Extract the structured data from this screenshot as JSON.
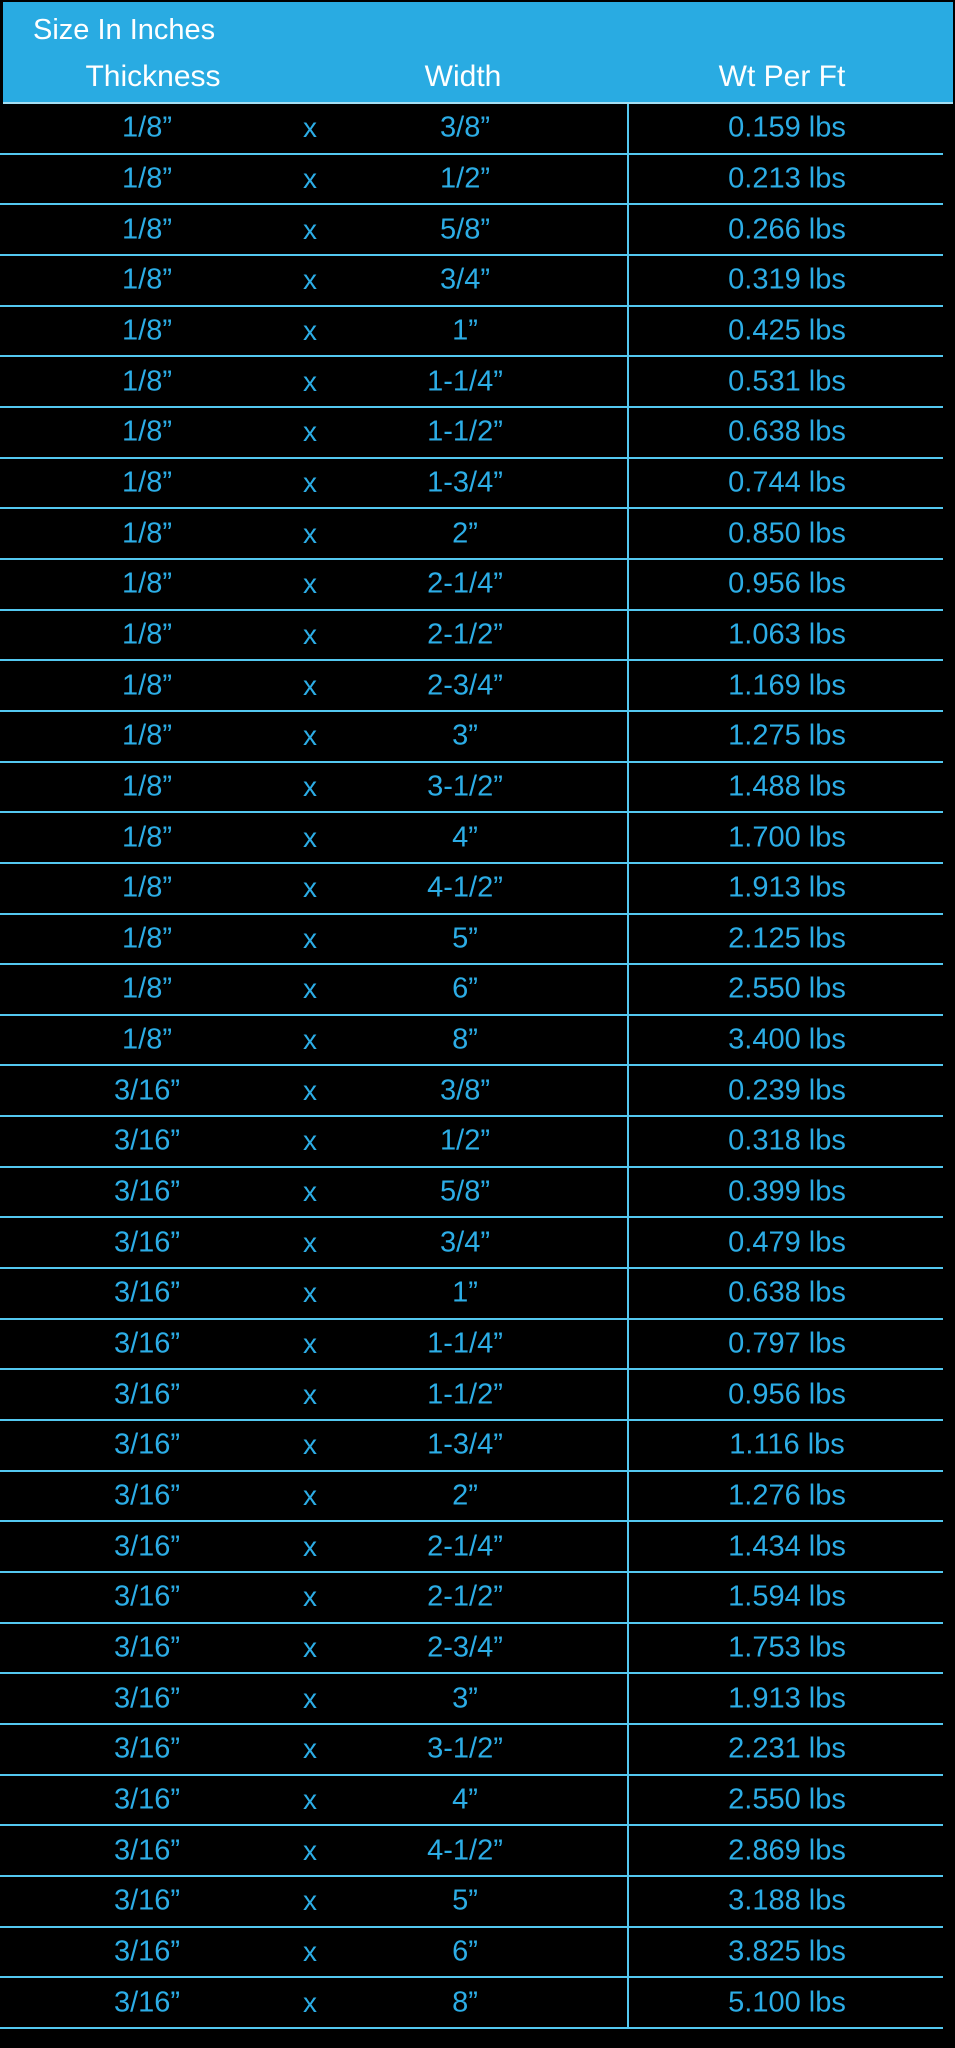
{
  "title": "Size In Inches",
  "columns": {
    "thickness": "Thickness",
    "width": "Width",
    "weight": "Wt Per Ft"
  },
  "separator": "x",
  "colors": {
    "background": "#000000",
    "header_bg": "#29ABE2",
    "header_text": "#FFFFFF",
    "data_text": "#2CADE6",
    "grid_line": "#54C8F0"
  },
  "rows": [
    [
      "1/8”",
      "3/8”",
      "0.159 lbs"
    ],
    [
      "1/8”",
      "1/2”",
      "0.213 lbs"
    ],
    [
      "1/8”",
      "5/8”",
      "0.266 lbs"
    ],
    [
      "1/8”",
      "3/4”",
      "0.319 lbs"
    ],
    [
      "1/8”",
      "1”",
      "0.425 lbs"
    ],
    [
      "1/8”",
      "1-1/4”",
      "0.531 lbs"
    ],
    [
      "1/8”",
      "1-1/2”",
      "0.638 lbs"
    ],
    [
      "1/8”",
      "1-3/4”",
      "0.744 lbs"
    ],
    [
      "1/8”",
      "2”",
      "0.850 lbs"
    ],
    [
      "1/8”",
      "2-1/4”",
      "0.956 lbs"
    ],
    [
      "1/8”",
      "2-1/2”",
      "1.063 lbs"
    ],
    [
      "1/8”",
      "2-3/4”",
      "1.169 lbs"
    ],
    [
      "1/8”",
      "3”",
      "1.275 lbs"
    ],
    [
      "1/8”",
      "3-1/2”",
      "1.488 lbs"
    ],
    [
      "1/8”",
      "4”",
      "1.700 lbs"
    ],
    [
      "1/8”",
      "4-1/2”",
      "1.913 lbs"
    ],
    [
      "1/8”",
      "5”",
      "2.125 lbs"
    ],
    [
      "1/8”",
      "6”",
      "2.550 lbs"
    ],
    [
      "1/8”",
      "8”",
      "3.400 lbs"
    ],
    [
      "3/16”",
      "3/8”",
      "0.239 lbs"
    ],
    [
      "3/16”",
      "1/2”",
      "0.318 lbs"
    ],
    [
      "3/16”",
      "5/8”",
      "0.399 lbs"
    ],
    [
      "3/16”",
      "3/4”",
      "0.479 lbs"
    ],
    [
      "3/16”",
      "1”",
      "0.638 lbs"
    ],
    [
      "3/16”",
      "1-1/4”",
      "0.797 lbs"
    ],
    [
      "3/16”",
      "1-1/2”",
      "0.956 lbs"
    ],
    [
      "3/16”",
      "1-3/4”",
      "1.116 lbs"
    ],
    [
      "3/16”",
      "2”",
      "1.276 lbs"
    ],
    [
      "3/16”",
      "2-1/4”",
      "1.434 lbs"
    ],
    [
      "3/16”",
      "2-1/2”",
      "1.594 lbs"
    ],
    [
      "3/16”",
      "2-3/4”",
      "1.753 lbs"
    ],
    [
      "3/16”",
      "3”",
      "1.913 lbs"
    ],
    [
      "3/16”",
      "3-1/2”",
      "2.231 lbs"
    ],
    [
      "3/16”",
      "4”",
      "2.550 lbs"
    ],
    [
      "3/16”",
      "4-1/2”",
      "2.869 lbs"
    ],
    [
      "3/16”",
      "5”",
      "3.188 lbs"
    ],
    [
      "3/16”",
      "6”",
      "3.825 lbs"
    ],
    [
      "3/16”",
      "8”",
      "5.100 lbs"
    ]
  ]
}
